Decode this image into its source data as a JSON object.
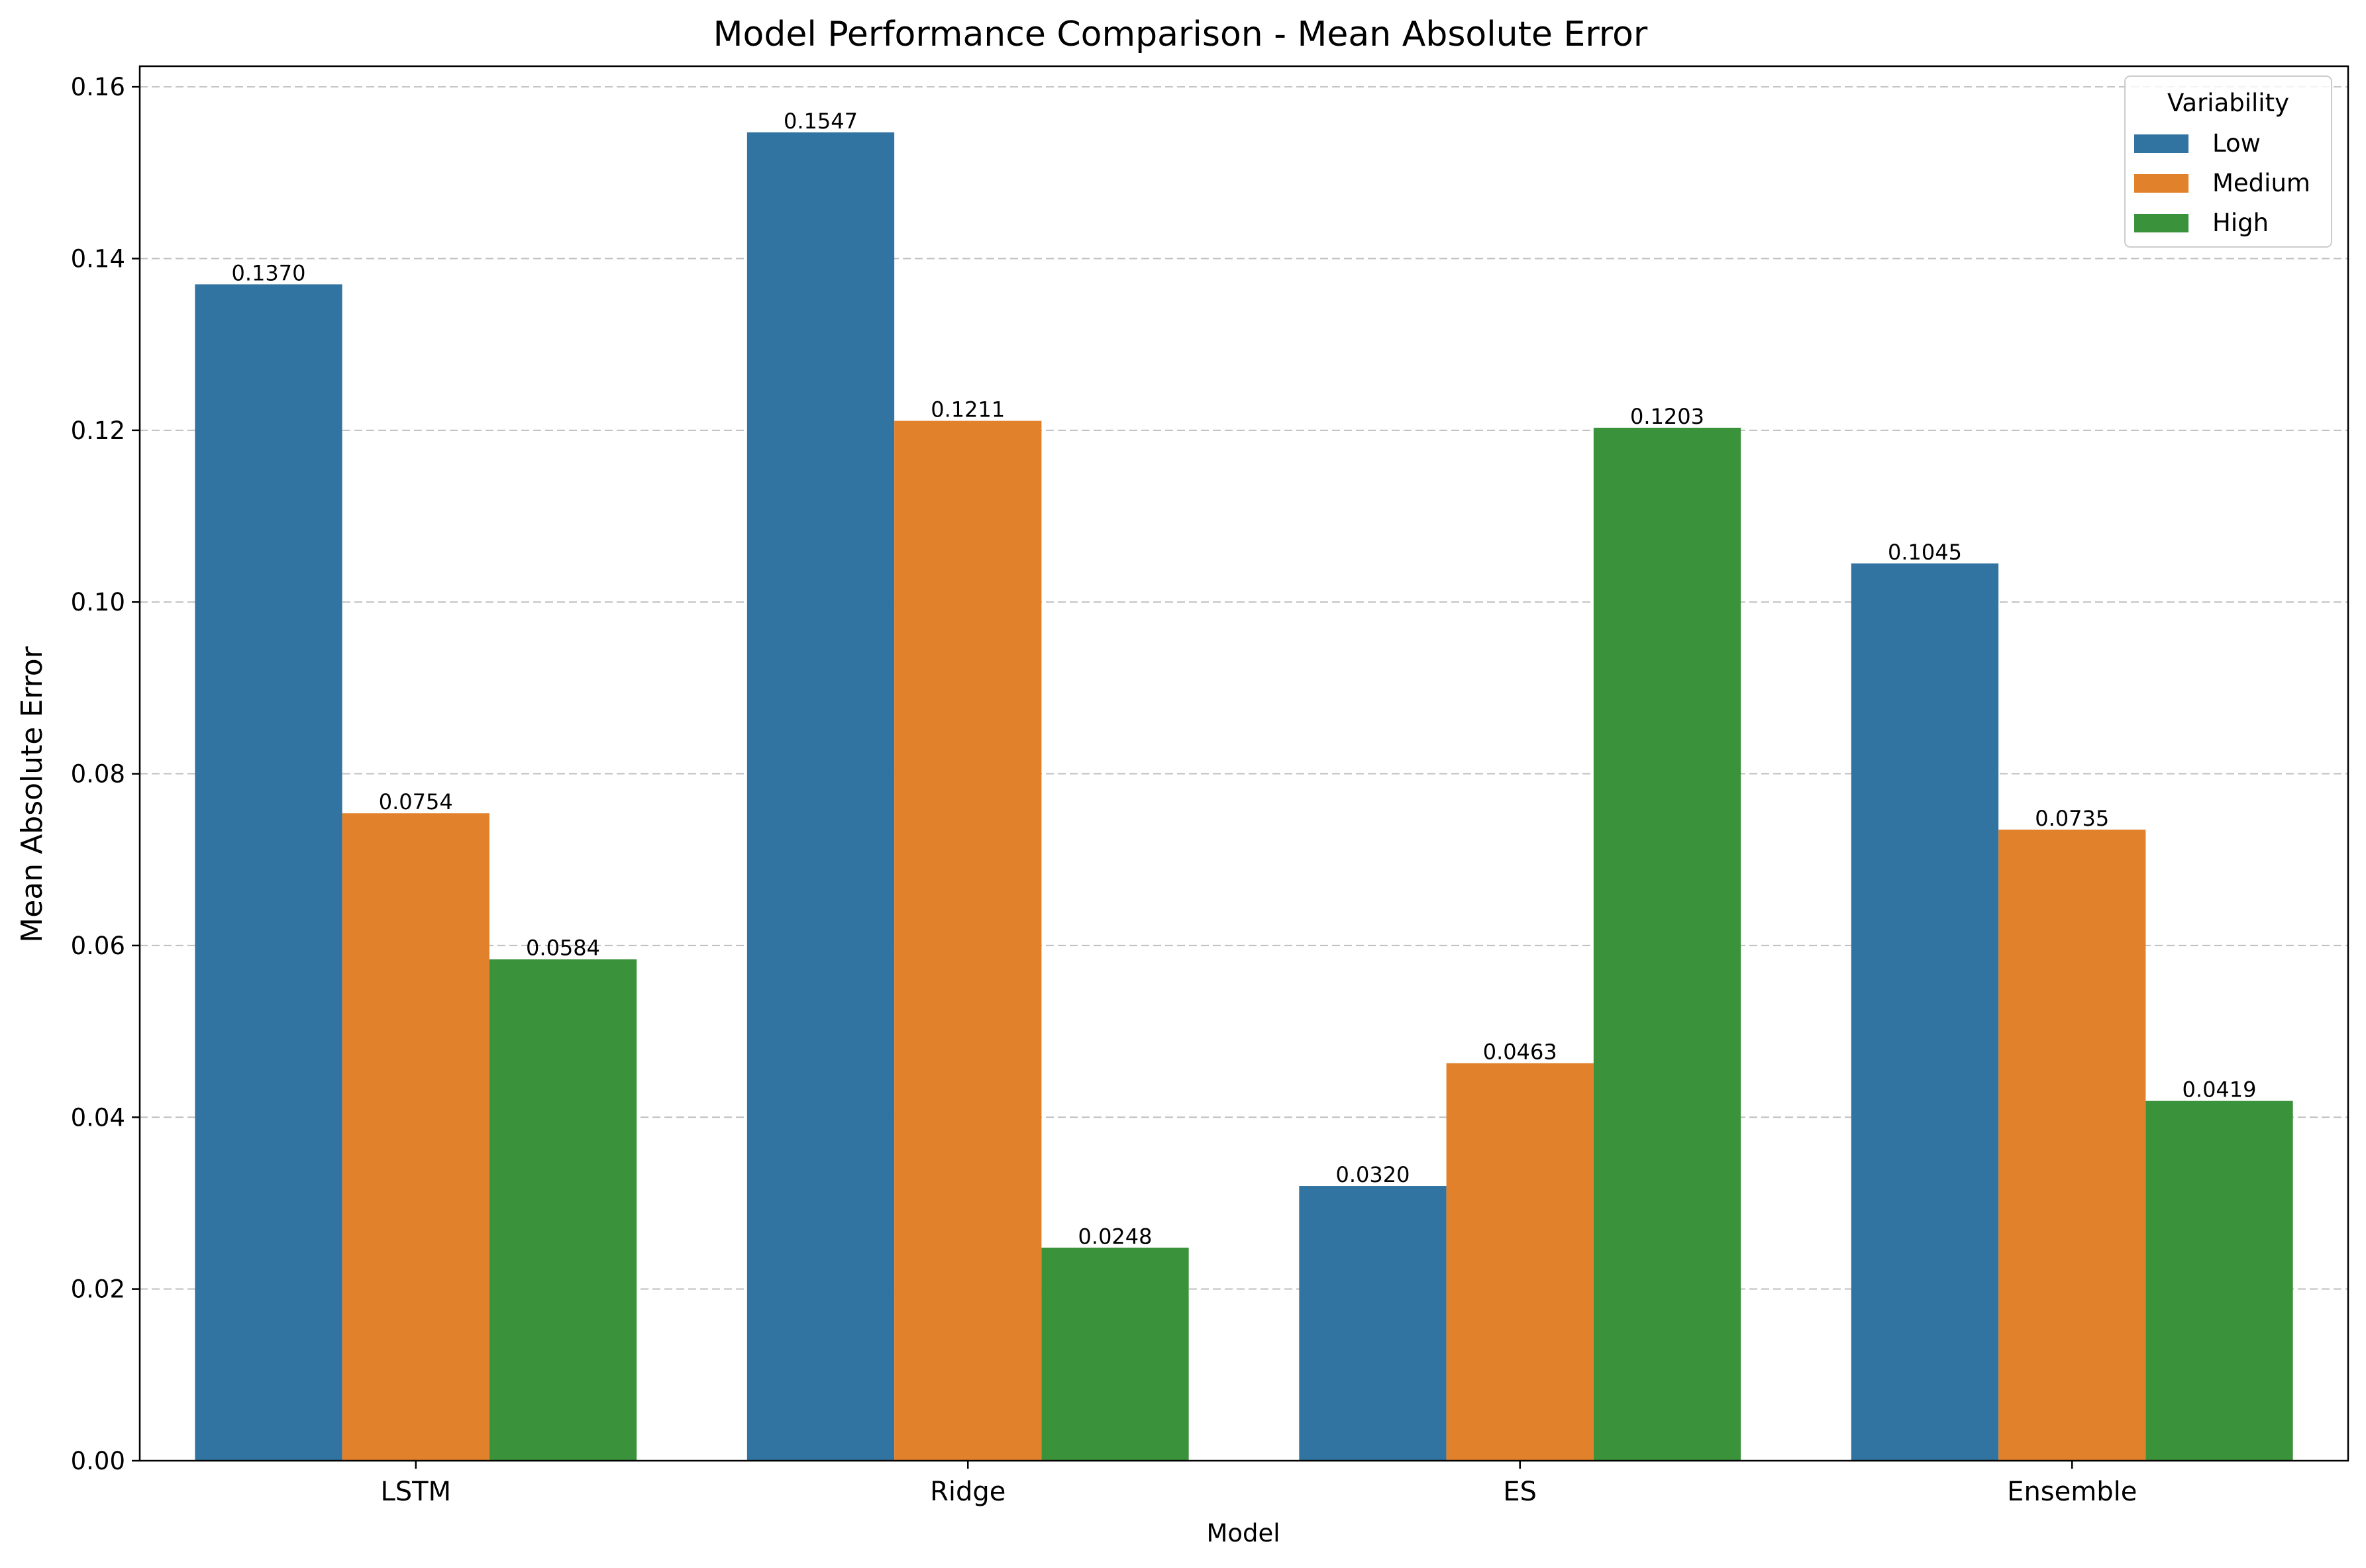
{
  "chart_data": {
    "type": "bar",
    "title": "Model Performance Comparison - Mean Absolute Error",
    "xlabel": "Model",
    "ylabel": "Mean Absolute Error",
    "categories": [
      "LSTM",
      "Ridge",
      "ES",
      "Ensemble"
    ],
    "ylim": [
      0,
      0.1624
    ],
    "yticks": [
      0.0,
      0.02,
      0.04,
      0.06,
      0.08,
      0.1,
      0.12,
      0.14,
      0.16
    ],
    "ytick_labels": [
      "0.00",
      "0.02",
      "0.04",
      "0.06",
      "0.08",
      "0.10",
      "0.12",
      "0.14",
      "0.16"
    ],
    "grid": "y-dashed",
    "legend": {
      "title": "Variability",
      "placement": "top-right"
    },
    "series": [
      {
        "name": "Low",
        "color": "#3274a1",
        "values": [
          0.137,
          0.1547,
          0.032,
          0.1045
        ],
        "labels": [
          "0.1370",
          "0.1547",
          "0.0320",
          "0.1045"
        ]
      },
      {
        "name": "Medium",
        "color": "#e1812c",
        "values": [
          0.0754,
          0.1211,
          0.0463,
          0.0735
        ],
        "labels": [
          "0.0754",
          "0.1211",
          "0.0463",
          "0.0735"
        ]
      },
      {
        "name": "High",
        "color": "#3a923a",
        "values": [
          0.0584,
          0.0248,
          0.1203,
          0.0419
        ],
        "labels": [
          "0.0584",
          "0.0248",
          "0.1203",
          "0.0419"
        ]
      }
    ]
  }
}
